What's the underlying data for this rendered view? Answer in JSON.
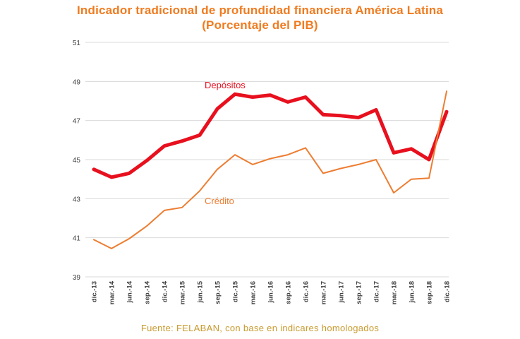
{
  "chart_data": {
    "type": "line",
    "title": "Indicador tradicional de profundidad financiera América Latina",
    "subtitle": "(Porcentaje del PIB)",
    "xlabel": "",
    "ylabel": "",
    "ylim": [
      39,
      51
    ],
    "yticks": [
      39,
      41,
      43,
      45,
      47,
      49,
      51
    ],
    "grid": "horizontal",
    "categories": [
      "dic.-13",
      "mar.-14",
      "jun.-14",
      "sep.-14",
      "dic.-14",
      "mar.-15",
      "jun.-15",
      "sep.-15",
      "dic.-15",
      "mar.-16",
      "jun.-16",
      "sep.-16",
      "dic.-16",
      "mar.-17",
      "jun.-17",
      "sep.-17",
      "dic.-17",
      "mar.-18",
      "jun.-18",
      "sep.-18",
      "dic.-18"
    ],
    "series": [
      {
        "name": "Depósitos",
        "color": "#E8101E",
        "values": [
          44.5,
          44.1,
          44.3,
          44.95,
          45.7,
          45.95,
          46.25,
          47.6,
          48.35,
          48.2,
          48.3,
          47.95,
          48.2,
          47.3,
          47.25,
          47.15,
          47.55,
          45.35,
          45.55,
          45.0,
          47.45
        ]
      },
      {
        "name": "Crédito",
        "color": "#ED7D31",
        "values": [
          40.9,
          40.45,
          40.95,
          41.6,
          42.4,
          42.55,
          43.4,
          44.5,
          45.25,
          44.75,
          45.05,
          45.25,
          45.6,
          44.3,
          44.55,
          44.75,
          45.0,
          43.3,
          44.0,
          44.05,
          48.5
        ]
      }
    ],
    "source": "Fuente: FELABAN, con base en indicares homologados"
  },
  "colors": {
    "title": "#F07B1F",
    "source": "#C89A2E",
    "grid": "#D9D9D9",
    "axis_text": "#404040"
  }
}
